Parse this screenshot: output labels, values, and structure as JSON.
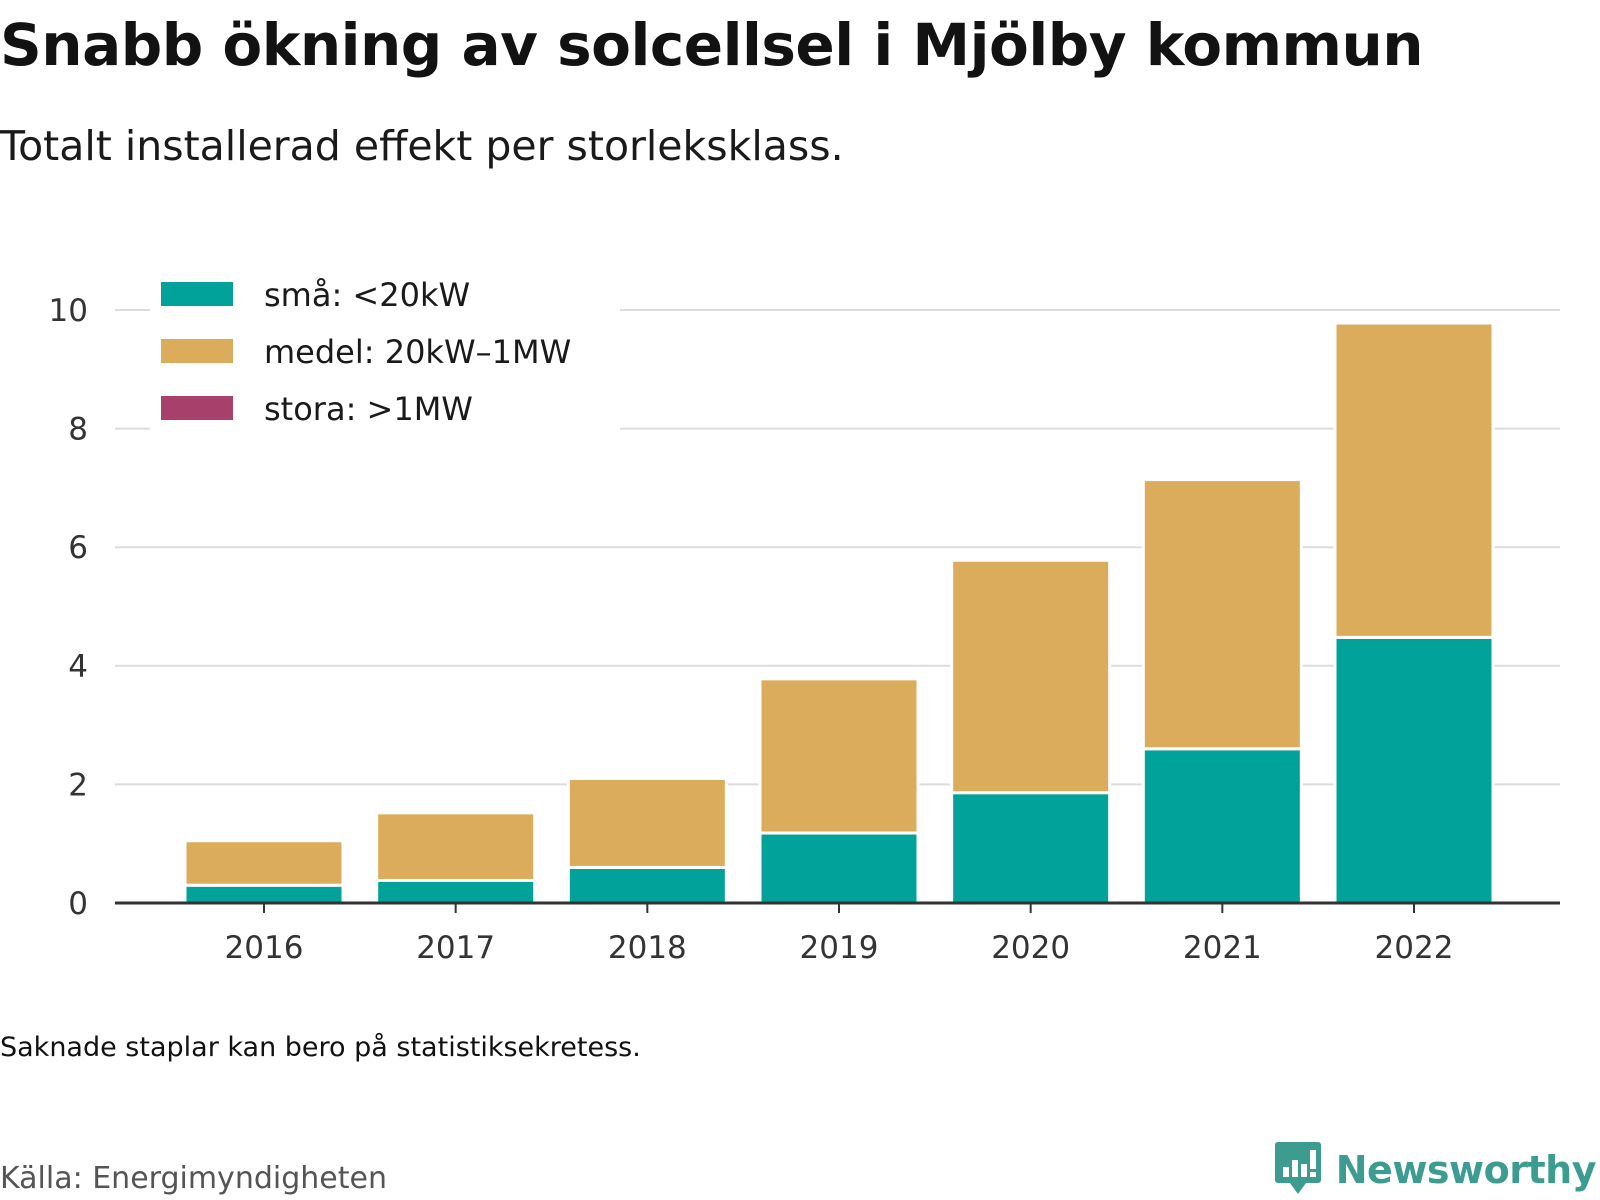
{
  "title": "Snabb ökning av solcellsel i Mjölby kommun",
  "subtitle": "Totalt installerad effekt per storleksklass.",
  "note": "Saknade staplar kan bero på statistiksekretess.",
  "source": "Källa: Energimyndigheten",
  "brand": {
    "name": "Newsworthy",
    "color": "#3b9c8f",
    "icon": "bar-chart-logo-icon"
  },
  "chart_data": {
    "type": "bar",
    "stacked": true,
    "categories": [
      "2016",
      "2017",
      "2018",
      "2019",
      "2020",
      "2021",
      "2022"
    ],
    "series": [
      {
        "name": "små: <20kW",
        "color": "#00a29a",
        "values": [
          0.3,
          0.38,
          0.6,
          1.18,
          1.86,
          2.6,
          4.48
        ]
      },
      {
        "name": "medel: 20kW–1MW",
        "color": "#dbac5c",
        "values": [
          0.75,
          1.14,
          1.5,
          2.6,
          3.92,
          4.54,
          5.3
        ]
      },
      {
        "name": "stora: >1MW",
        "color": "#a8406c",
        "values": [
          0,
          0,
          0,
          0,
          0,
          0,
          0
        ]
      }
    ],
    "ylim": [
      0,
      10
    ],
    "yticks": [
      "0",
      "2",
      "4",
      "6",
      "8",
      "10"
    ],
    "grid": true,
    "legend": "top-left",
    "xlabel": "",
    "ylabel": ""
  }
}
